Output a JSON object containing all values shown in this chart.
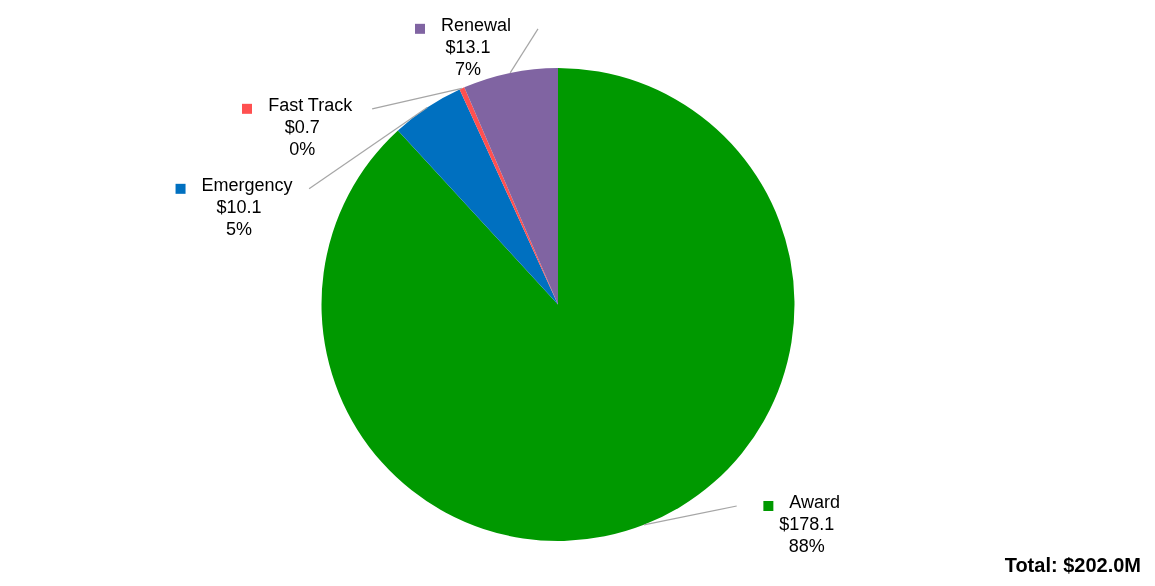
{
  "chart_data": {
    "type": "pie",
    "categories": [
      "Award",
      "Emergency",
      "Fast Track",
      "Renewal"
    ],
    "values": [
      178.1,
      10.1,
      0.7,
      13.1
    ],
    "colors": [
      "#009900",
      "#0070c0",
      "#ff5050",
      "#8064a2"
    ],
    "value_labels": [
      "$178.1\n88%",
      "$10.1\n5%",
      "$0.7\n0%",
      "$13.1\n7%"
    ],
    "annotations": [
      "Total: $202.0M"
    ],
    "legend": "left"
  }
}
